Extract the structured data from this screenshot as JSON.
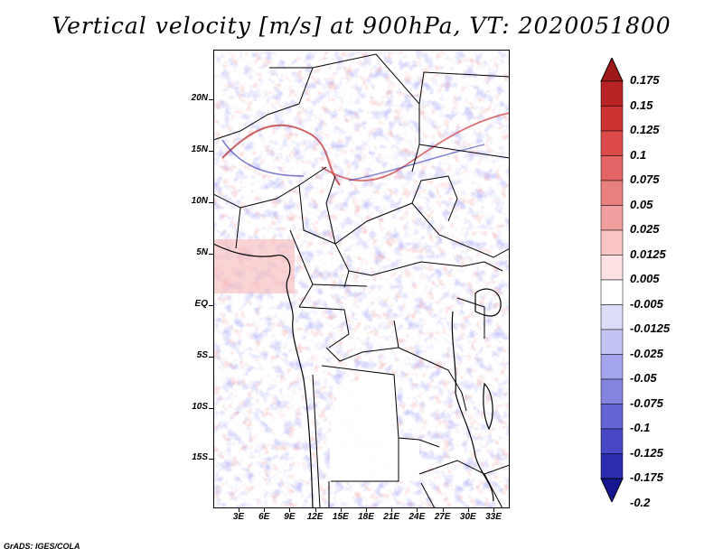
{
  "title": "Vertical velocity [m/s] at 900hPa, VT: 2020051800",
  "footer": "GrADS: IGES/COLA",
  "lat_ticks": [
    "20N",
    "15N",
    "10N",
    "5N",
    "EQ",
    "5S",
    "10S",
    "15S"
  ],
  "lon_ticks": [
    "3E",
    "6E",
    "9E",
    "12E",
    "15E",
    "18E",
    "21E",
    "24E",
    "27E",
    "30E",
    "33E"
  ],
  "colorbar": {
    "labels": [
      "0.175",
      "0.15",
      "0.125",
      "0.1",
      "0.075",
      "0.05",
      "0.025",
      "0.0125",
      "0.005",
      "-0.005",
      "-0.0125",
      "-0.025",
      "-0.05",
      "-0.075",
      "-0.1",
      "-0.125",
      "-0.175",
      "-0.2"
    ],
    "colors": [
      "#a01818",
      "#b82424",
      "#cc3434",
      "#dc4a4a",
      "#e26464",
      "#e88080",
      "#f09e9e",
      "#f8c4c4",
      "#fce2e2",
      "#ffffff",
      "#dcdcf8",
      "#c4c4f4",
      "#a4a4ec",
      "#8484e0",
      "#6464d4",
      "#4848c4",
      "#2c2cb0",
      "#161690"
    ]
  }
}
